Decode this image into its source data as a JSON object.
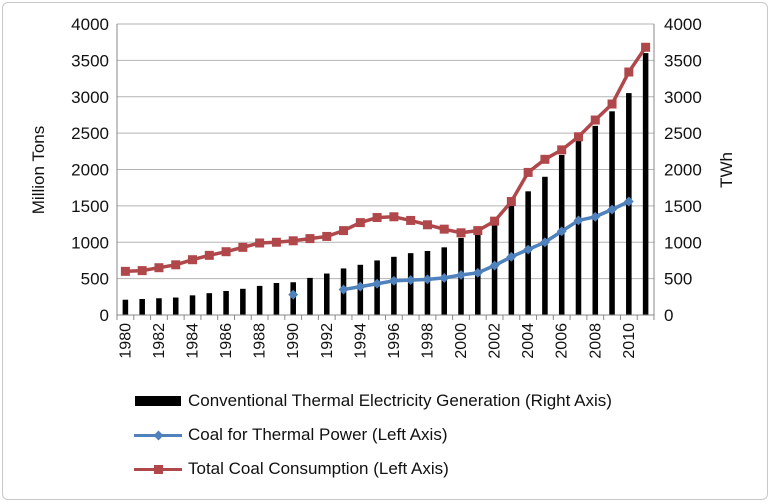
{
  "colors": {
    "bars": "#000000",
    "thermal_coal": "#4f81bd",
    "total_coal": "#b0484b",
    "grid": "#b3b3b3"
  },
  "legend": {
    "generation": "Conventional Thermal Electricity Generation (Right Axis)",
    "thermal_coal": "Coal for Thermal Power (Left Axis)",
    "total_coal": "Total Coal Consumption (Left Axis)"
  },
  "chart_data": {
    "type": "bar",
    "title": "",
    "ylabel": "Million Tons",
    "y2label": "TWh",
    "ylim": [
      0,
      4000
    ],
    "y2lim": [
      0,
      4000
    ],
    "yticks": [
      0,
      500,
      1000,
      1500,
      2000,
      2500,
      3000,
      3500,
      4000
    ],
    "y2ticks": [
      0,
      500,
      1000,
      1500,
      2000,
      2500,
      3000,
      3500,
      4000
    ],
    "grid": true,
    "legend_position": "bottom",
    "x": [
      1980,
      1981,
      1982,
      1983,
      1984,
      1985,
      1986,
      1987,
      1988,
      1989,
      1990,
      1991,
      1992,
      1993,
      1994,
      1995,
      1996,
      1997,
      1998,
      1999,
      2000,
      2001,
      2002,
      2003,
      2004,
      2005,
      2006,
      2007,
      2008,
      2009,
      2010,
      2011
    ],
    "xtick_labels": [
      "1980",
      "1982",
      "1984",
      "1986",
      "1988",
      "1990",
      "1992",
      "1994",
      "1996",
      "1998",
      "2000",
      "2002",
      "2004",
      "2006",
      "2008",
      "2010"
    ],
    "series": [
      {
        "name": "Conventional Thermal Electricity Generation (Right Axis)",
        "type": "bar",
        "axis": "right",
        "values": [
          210,
          220,
          230,
          240,
          270,
          300,
          330,
          360,
          400,
          440,
          450,
          510,
          570,
          640,
          690,
          750,
          800,
          850,
          880,
          930,
          1060,
          1150,
          1260,
          1500,
          1700,
          1900,
          2200,
          2400,
          2600,
          2800,
          3050,
          3600
        ]
      },
      {
        "name": "Coal for Thermal Power (Left Axis)",
        "type": "line",
        "axis": "left",
        "values": [
          null,
          null,
          null,
          null,
          null,
          null,
          null,
          null,
          null,
          null,
          280,
          null,
          null,
          350,
          390,
          430,
          470,
          480,
          490,
          510,
          550,
          580,
          680,
          800,
          900,
          1000,
          1150,
          1300,
          1350,
          1450,
          1560,
          null
        ]
      },
      {
        "name": "Total Coal Consumption (Left Axis)",
        "type": "line",
        "axis": "left",
        "values": [
          600,
          610,
          650,
          690,
          760,
          820,
          870,
          930,
          990,
          1000,
          1020,
          1050,
          1080,
          1160,
          1270,
          1340,
          1350,
          1300,
          1240,
          1180,
          1130,
          1160,
          1290,
          1560,
          1960,
          2140,
          2270,
          2450,
          2680,
          2900,
          3340,
          3680
        ]
      }
    ]
  }
}
